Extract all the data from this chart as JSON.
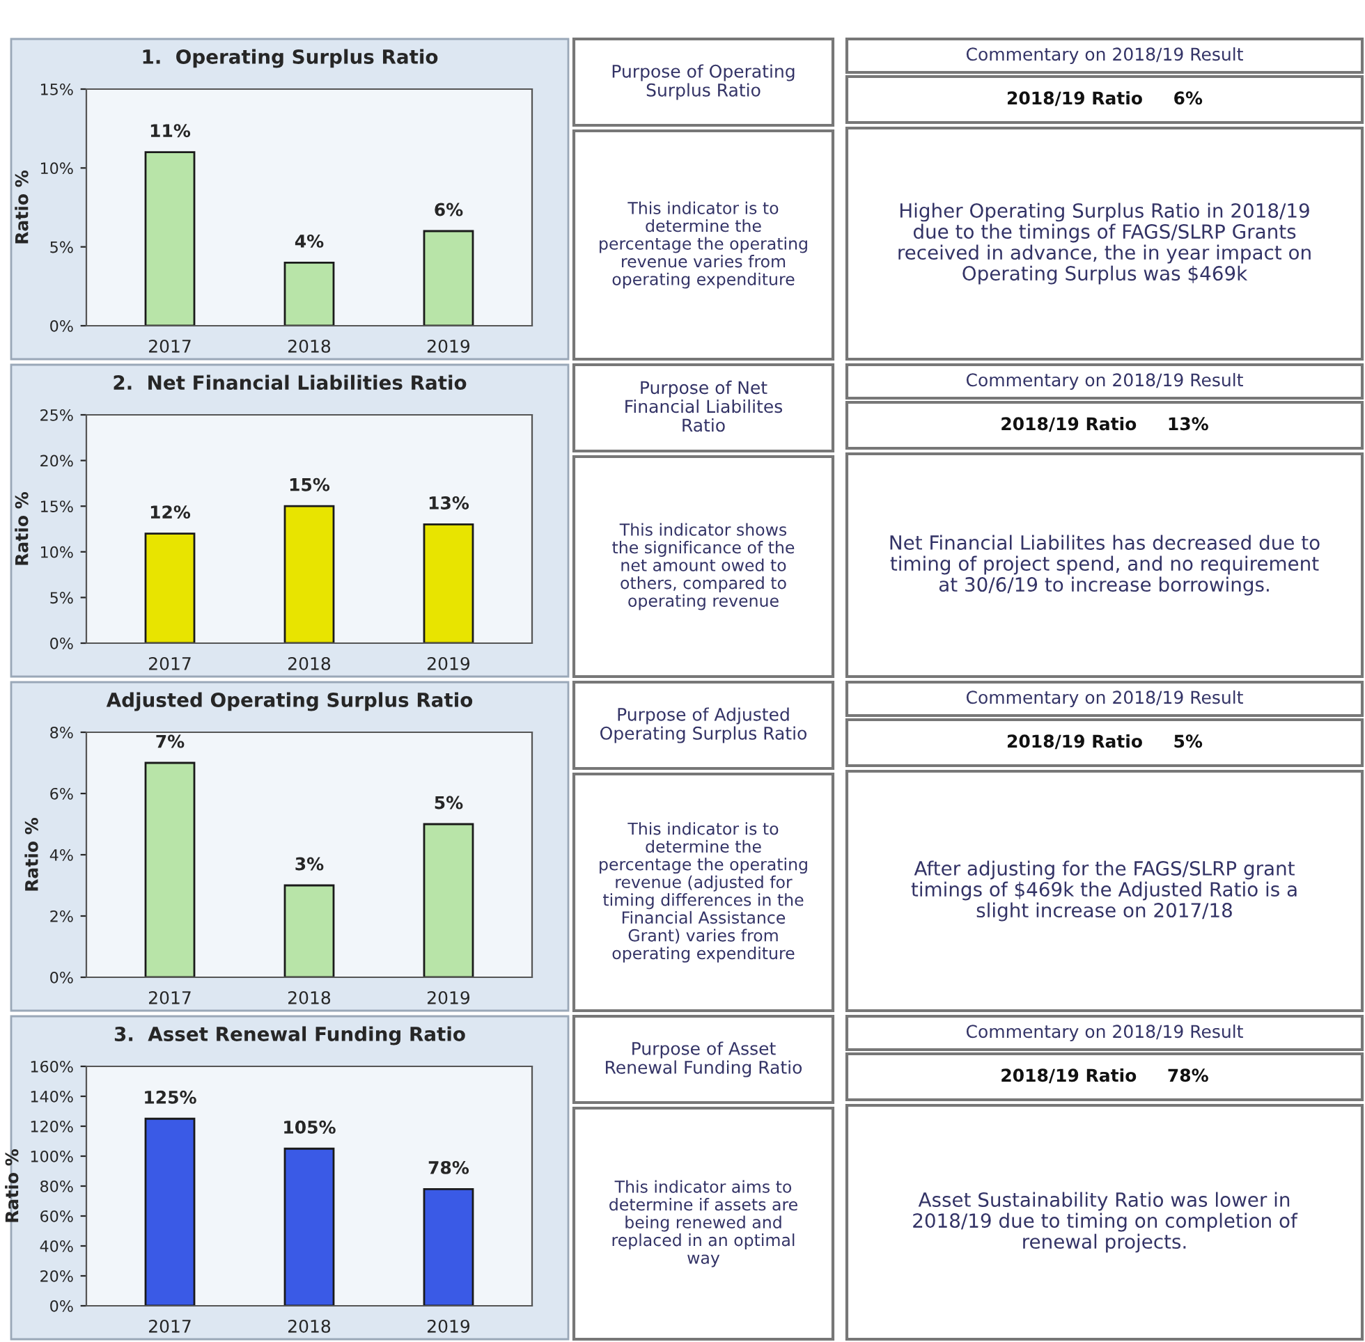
{
  "chart_data": [
    {
      "type": "bar",
      "title": "1.  Operating Surplus Ratio",
      "ylabel": "Ratio %",
      "categories": [
        "2017",
        "2018",
        "2019"
      ],
      "values": [
        11,
        4,
        6
      ],
      "value_labels": [
        "11%",
        "4%",
        "6%"
      ],
      "color": "#b8e4a8",
      "ylim": [
        0,
        15
      ],
      "yticks": [
        {
          "value": 0,
          "label": "0%"
        },
        {
          "value": 5,
          "label": "5%"
        },
        {
          "value": 10,
          "label": "10%"
        },
        {
          "value": 15,
          "label": "15%"
        }
      ]
    },
    {
      "type": "other",
      "annotations": [
        "Purpose of Operating\nSurplus Ratio",
        "This indicator is to\ndetermine the\npercentage the operating\nrevenue varies from\noperating expenditure",
        "Commentary on 2018/19 Result",
        "2018/19 Ratio     6%",
        "Higher Operating Surplus Ratio in 2018/19\ndue to the timings of FAGS/SLRP Grants\nreceived in advance, the in year impact on\nOperating Surplus was $469k"
      ]
    },
    {
      "type": "bar",
      "title": "2.  Net Financial Liabilities Ratio",
      "ylabel": "Ratio %",
      "categories": [
        "2017",
        "2018",
        "2019"
      ],
      "values": [
        12,
        15,
        13
      ],
      "value_labels": [
        "12%",
        "15%",
        "13%"
      ],
      "color": "#e8e400",
      "ylim": [
        0,
        25
      ],
      "yticks": [
        {
          "value": 0,
          "label": "0%"
        },
        {
          "value": 5,
          "label": "5%"
        },
        {
          "value": 10,
          "label": "10%"
        },
        {
          "value": 15,
          "label": "15%"
        },
        {
          "value": 20,
          "label": "20%"
        },
        {
          "value": 25,
          "label": "25%"
        }
      ]
    },
    {
      "type": "other",
      "annotations": [
        "Purpose of Net\nFinancial Liabilites\nRatio",
        "This indicator shows\nthe significance of the\nnet amount owed to\nothers, compared to\noperating revenue",
        "Commentary on 2018/19 Result",
        "2018/19 Ratio     13%",
        "Net Financial Liabilites has decreased due to\ntiming of project spend, and no requirement\nat 30/6/19 to increase borrowings."
      ]
    },
    {
      "type": "bar",
      "title": "Adjusted Operating Surplus Ratio",
      "ylabel": "Ratio %",
      "categories": [
        "2017",
        "2018",
        "2019"
      ],
      "values": [
        7,
        3,
        5
      ],
      "value_labels": [
        "7%",
        "3%",
        "5%"
      ],
      "color": "#b8e4a8",
      "ylim": [
        0,
        8
      ],
      "yticks": [
        {
          "value": 0,
          "label": "0%"
        },
        {
          "value": 2,
          "label": "2%"
        },
        {
          "value": 4,
          "label": "4%"
        },
        {
          "value": 6,
          "label": "6%"
        },
        {
          "value": 8,
          "label": "8%"
        }
      ]
    },
    {
      "type": "other",
      "annotations": [
        "Purpose of Adjusted\nOperating Surplus Ratio",
        "This indicator is to\ndetermine the\npercentage the operating\nrevenue (adjusted for\ntiming differences in the\nFinancial Assistance\nGrant) varies from\noperating expenditure",
        "Commentary on 2018/19 Result",
        "2018/19 Ratio     5%",
        "After adjusting for the FAGS/SLRP grant\ntimings of $469k the Adjusted Ratio is a\nslight increase on 2017/18"
      ]
    },
    {
      "type": "bar",
      "title": "3.  Asset Renewal Funding Ratio",
      "ylabel": "Ratio %",
      "categories": [
        "2017",
        "2018",
        "2019"
      ],
      "values": [
        125,
        105,
        78
      ],
      "value_labels": [
        "125%",
        "105%",
        "78%"
      ],
      "color": "#3a5ae6",
      "ylim": [
        0,
        160
      ],
      "yticks": [
        {
          "value": 0,
          "label": "0%"
        },
        {
          "value": 20,
          "label": "20%"
        },
        {
          "value": 40,
          "label": "40%"
        },
        {
          "value": 60,
          "label": "60%"
        },
        {
          "value": 80,
          "label": "80%"
        },
        {
          "value": 100,
          "label": "100%"
        },
        {
          "value": 120,
          "label": "120%"
        },
        {
          "value": 140,
          "label": "140%"
        },
        {
          "value": 160,
          "label": "160%"
        }
      ]
    },
    {
      "type": "other",
      "annotations": [
        "Purpose of Asset\nRenewal Funding Ratio",
        "This indicator aims to\ndetermine if assets are\nbeing renewed and\nreplaced in an optimal\nway",
        "Commentary on 2018/19 Result",
        "2018/19 Ratio     78%",
        "Asset Sustainability Ratio was lower in\n2018/19 due to timing on completion of\nrenewal projects."
      ]
    }
  ]
}
